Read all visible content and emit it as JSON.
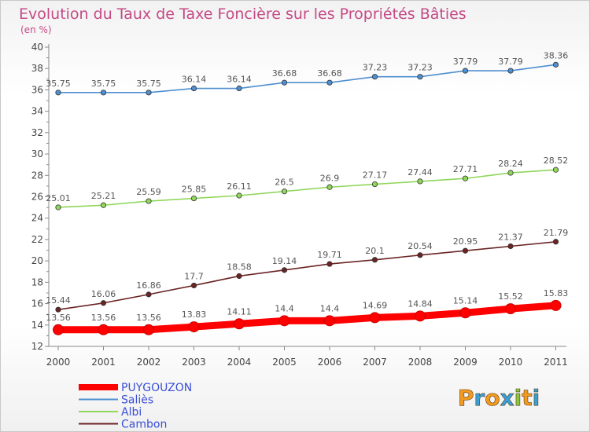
{
  "chart_data": {
    "type": "line",
    "title": "Evolution du Taux de Taxe Foncière sur les Propriétés Bâties",
    "unit_label": "(en %)",
    "xlabel": "",
    "ylabel": "",
    "ylim": [
      12,
      40
    ],
    "y_ticks": [
      12,
      14,
      16,
      18,
      20,
      22,
      24,
      26,
      28,
      30,
      32,
      34,
      36,
      38,
      40
    ],
    "categories": [
      "2000",
      "2001",
      "2002",
      "2003",
      "2004",
      "2005",
      "2006",
      "2007",
      "2008",
      "2009",
      "2010",
      "2011"
    ],
    "series": [
      {
        "name": "PUYGOUZON",
        "color": "#ff0000",
        "values": [
          13.56,
          13.56,
          13.56,
          13.83,
          14.11,
          14.4,
          14.4,
          14.69,
          14.84,
          15.14,
          15.52,
          15.83
        ],
        "labels": [
          "13.56",
          "13.56",
          "13.56",
          "13.83",
          "14.11",
          "14.4",
          "14.4",
          "14.69",
          "14.84",
          "15.14",
          "15.52",
          "15.83"
        ]
      },
      {
        "name": "Saliès",
        "color": "#4f8fd0",
        "values": [
          35.75,
          35.75,
          35.75,
          36.14,
          36.14,
          36.68,
          36.68,
          37.23,
          37.23,
          37.79,
          37.79,
          38.36
        ],
        "labels": [
          "35.75",
          "35.75",
          "35.75",
          "36.14",
          "36.14",
          "36.68",
          "36.68",
          "37.23",
          "37.23",
          "37.79",
          "37.79",
          "38.36"
        ]
      },
      {
        "name": "Albi",
        "color": "#8fd65a",
        "values": [
          25.01,
          25.21,
          25.59,
          25.85,
          26.11,
          26.5,
          26.9,
          27.17,
          27.44,
          27.71,
          28.24,
          28.52
        ],
        "labels": [
          "25.01",
          "25.21",
          "25.59",
          "25.85",
          "26.11",
          "26.5",
          "26.9",
          "27.17",
          "27.44",
          "27.71",
          "28.24",
          "28.52"
        ]
      },
      {
        "name": "Cambon",
        "color": "#6b2424",
        "values": [
          15.44,
          16.06,
          16.86,
          17.7,
          18.58,
          19.14,
          19.71,
          20.1,
          20.54,
          20.95,
          21.37,
          21.79
        ],
        "labels": [
          "15.44",
          "16.06",
          "16.86",
          "17.7",
          "18.58",
          "19.14",
          "19.71",
          "20.1",
          "20.54",
          "20.95",
          "21.37",
          "21.79"
        ]
      }
    ],
    "legend_position": "bottom-left",
    "grid": false
  },
  "logo": {
    "text": "Proxiti"
  }
}
